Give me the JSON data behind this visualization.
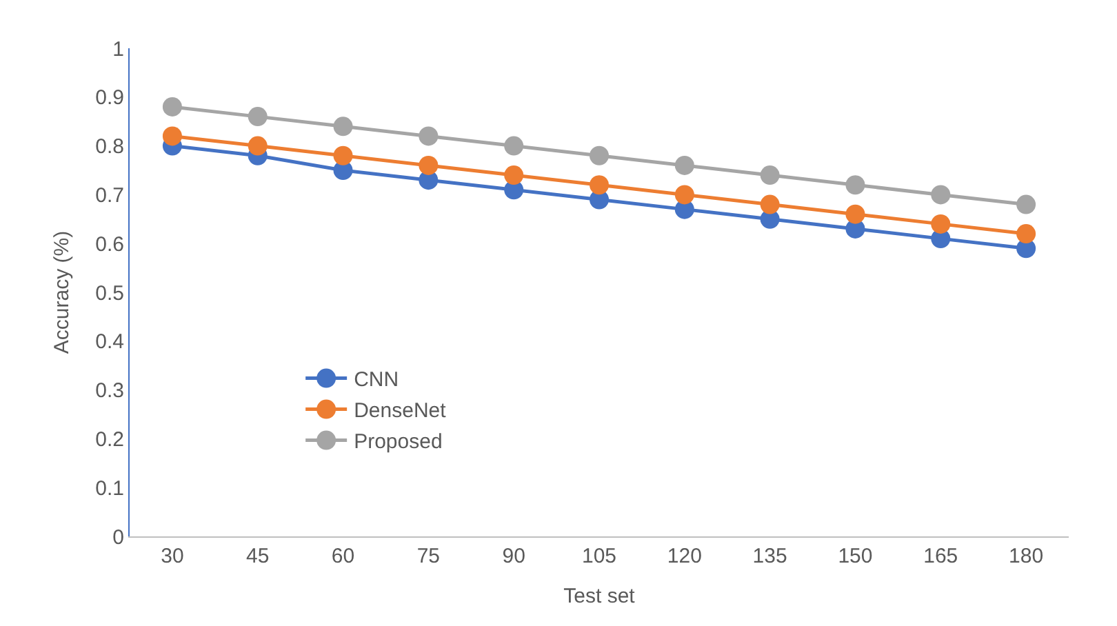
{
  "chart_data": {
    "type": "line",
    "xlabel": "Test set",
    "ylabel": "Accuracy (%)",
    "categories": [
      "30",
      "45",
      "60",
      "75",
      "90",
      "105",
      "120",
      "135",
      "150",
      "165",
      "180"
    ],
    "series": [
      {
        "name": "CNN",
        "color": "#4472c4",
        "values": [
          0.8,
          0.78,
          0.75,
          0.73,
          0.71,
          0.69,
          0.67,
          0.65,
          0.63,
          0.61,
          0.59
        ]
      },
      {
        "name": "DenseNet",
        "color": "#ed7d31",
        "values": [
          0.82,
          0.8,
          0.78,
          0.76,
          0.74,
          0.72,
          0.7,
          0.68,
          0.66,
          0.64,
          0.62
        ]
      },
      {
        "name": "Proposed",
        "color": "#a5a5a5",
        "values": [
          0.88,
          0.86,
          0.84,
          0.82,
          0.8,
          0.78,
          0.76,
          0.74,
          0.72,
          0.7,
          0.68
        ]
      }
    ],
    "ylim": [
      0,
      1
    ],
    "yticks": [
      0,
      0.1,
      0.2,
      0.3,
      0.4,
      0.5,
      0.6,
      0.7,
      0.8,
      0.9,
      1
    ],
    "grid": false,
    "legend": "left",
    "marker": "circle",
    "line_style": "solid"
  }
}
